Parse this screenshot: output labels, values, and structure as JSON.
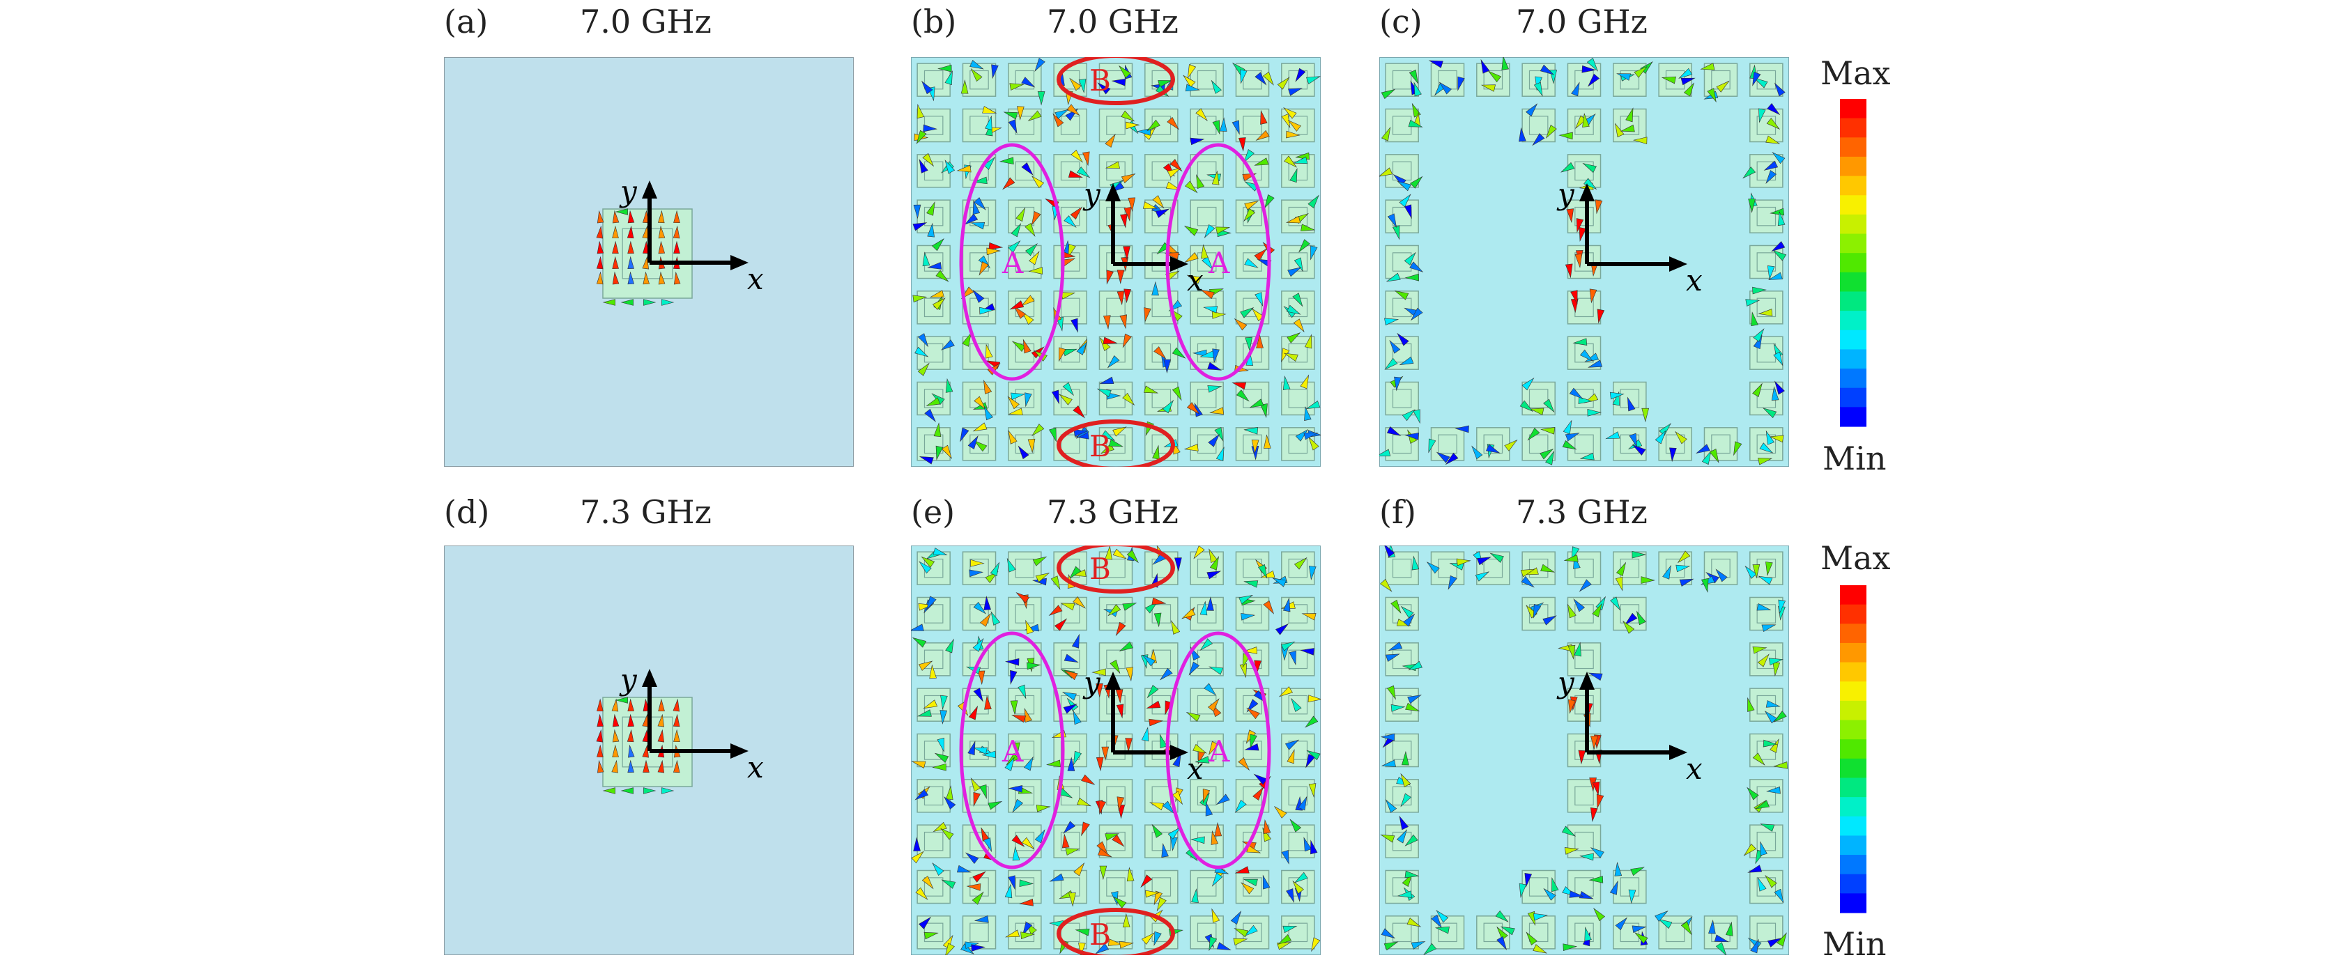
{
  "panels": [
    {
      "id": "a",
      "tag": "(a)",
      "freq": "7.0 GHz",
      "type": "single"
    },
    {
      "id": "b",
      "tag": "(b)",
      "freq": "7.0 GHz",
      "type": "full",
      "markA": "A",
      "markB": "B"
    },
    {
      "id": "c",
      "tag": "(c)",
      "freq": "7.0 GHz",
      "type": "ibeam"
    },
    {
      "id": "d",
      "tag": "(d)",
      "freq": "7.3 GHz",
      "type": "single"
    },
    {
      "id": "e",
      "tag": "(e)",
      "freq": "7.3 GHz",
      "type": "full",
      "markA": "A",
      "markB": "B"
    },
    {
      "id": "f",
      "tag": "(f)",
      "freq": "7.3 GHz",
      "type": "ibeam"
    }
  ],
  "axis_labels": {
    "x": "x",
    "y": "y"
  },
  "colorbar": {
    "max_label": "Max",
    "min_label": "Min",
    "colors": [
      "#ff0000",
      "#ff3000",
      "#ff6400",
      "#ff9800",
      "#ffc800",
      "#f8f000",
      "#c8f000",
      "#8cf000",
      "#50e800",
      "#10e030",
      "#00e880",
      "#00f0c8",
      "#00e8ff",
      "#00b4ff",
      "#0078ff",
      "#0040ff",
      "#0000ff"
    ]
  },
  "colors": {
    "substrate_plain": "#bfe0ec",
    "substrate_meta": "#aeeaf0",
    "cell_fill": "#c2f0d4",
    "cell_stroke": "#7aa89a",
    "ellipse_a": "#e020e0",
    "ellipse_b": "#e02020"
  }
}
